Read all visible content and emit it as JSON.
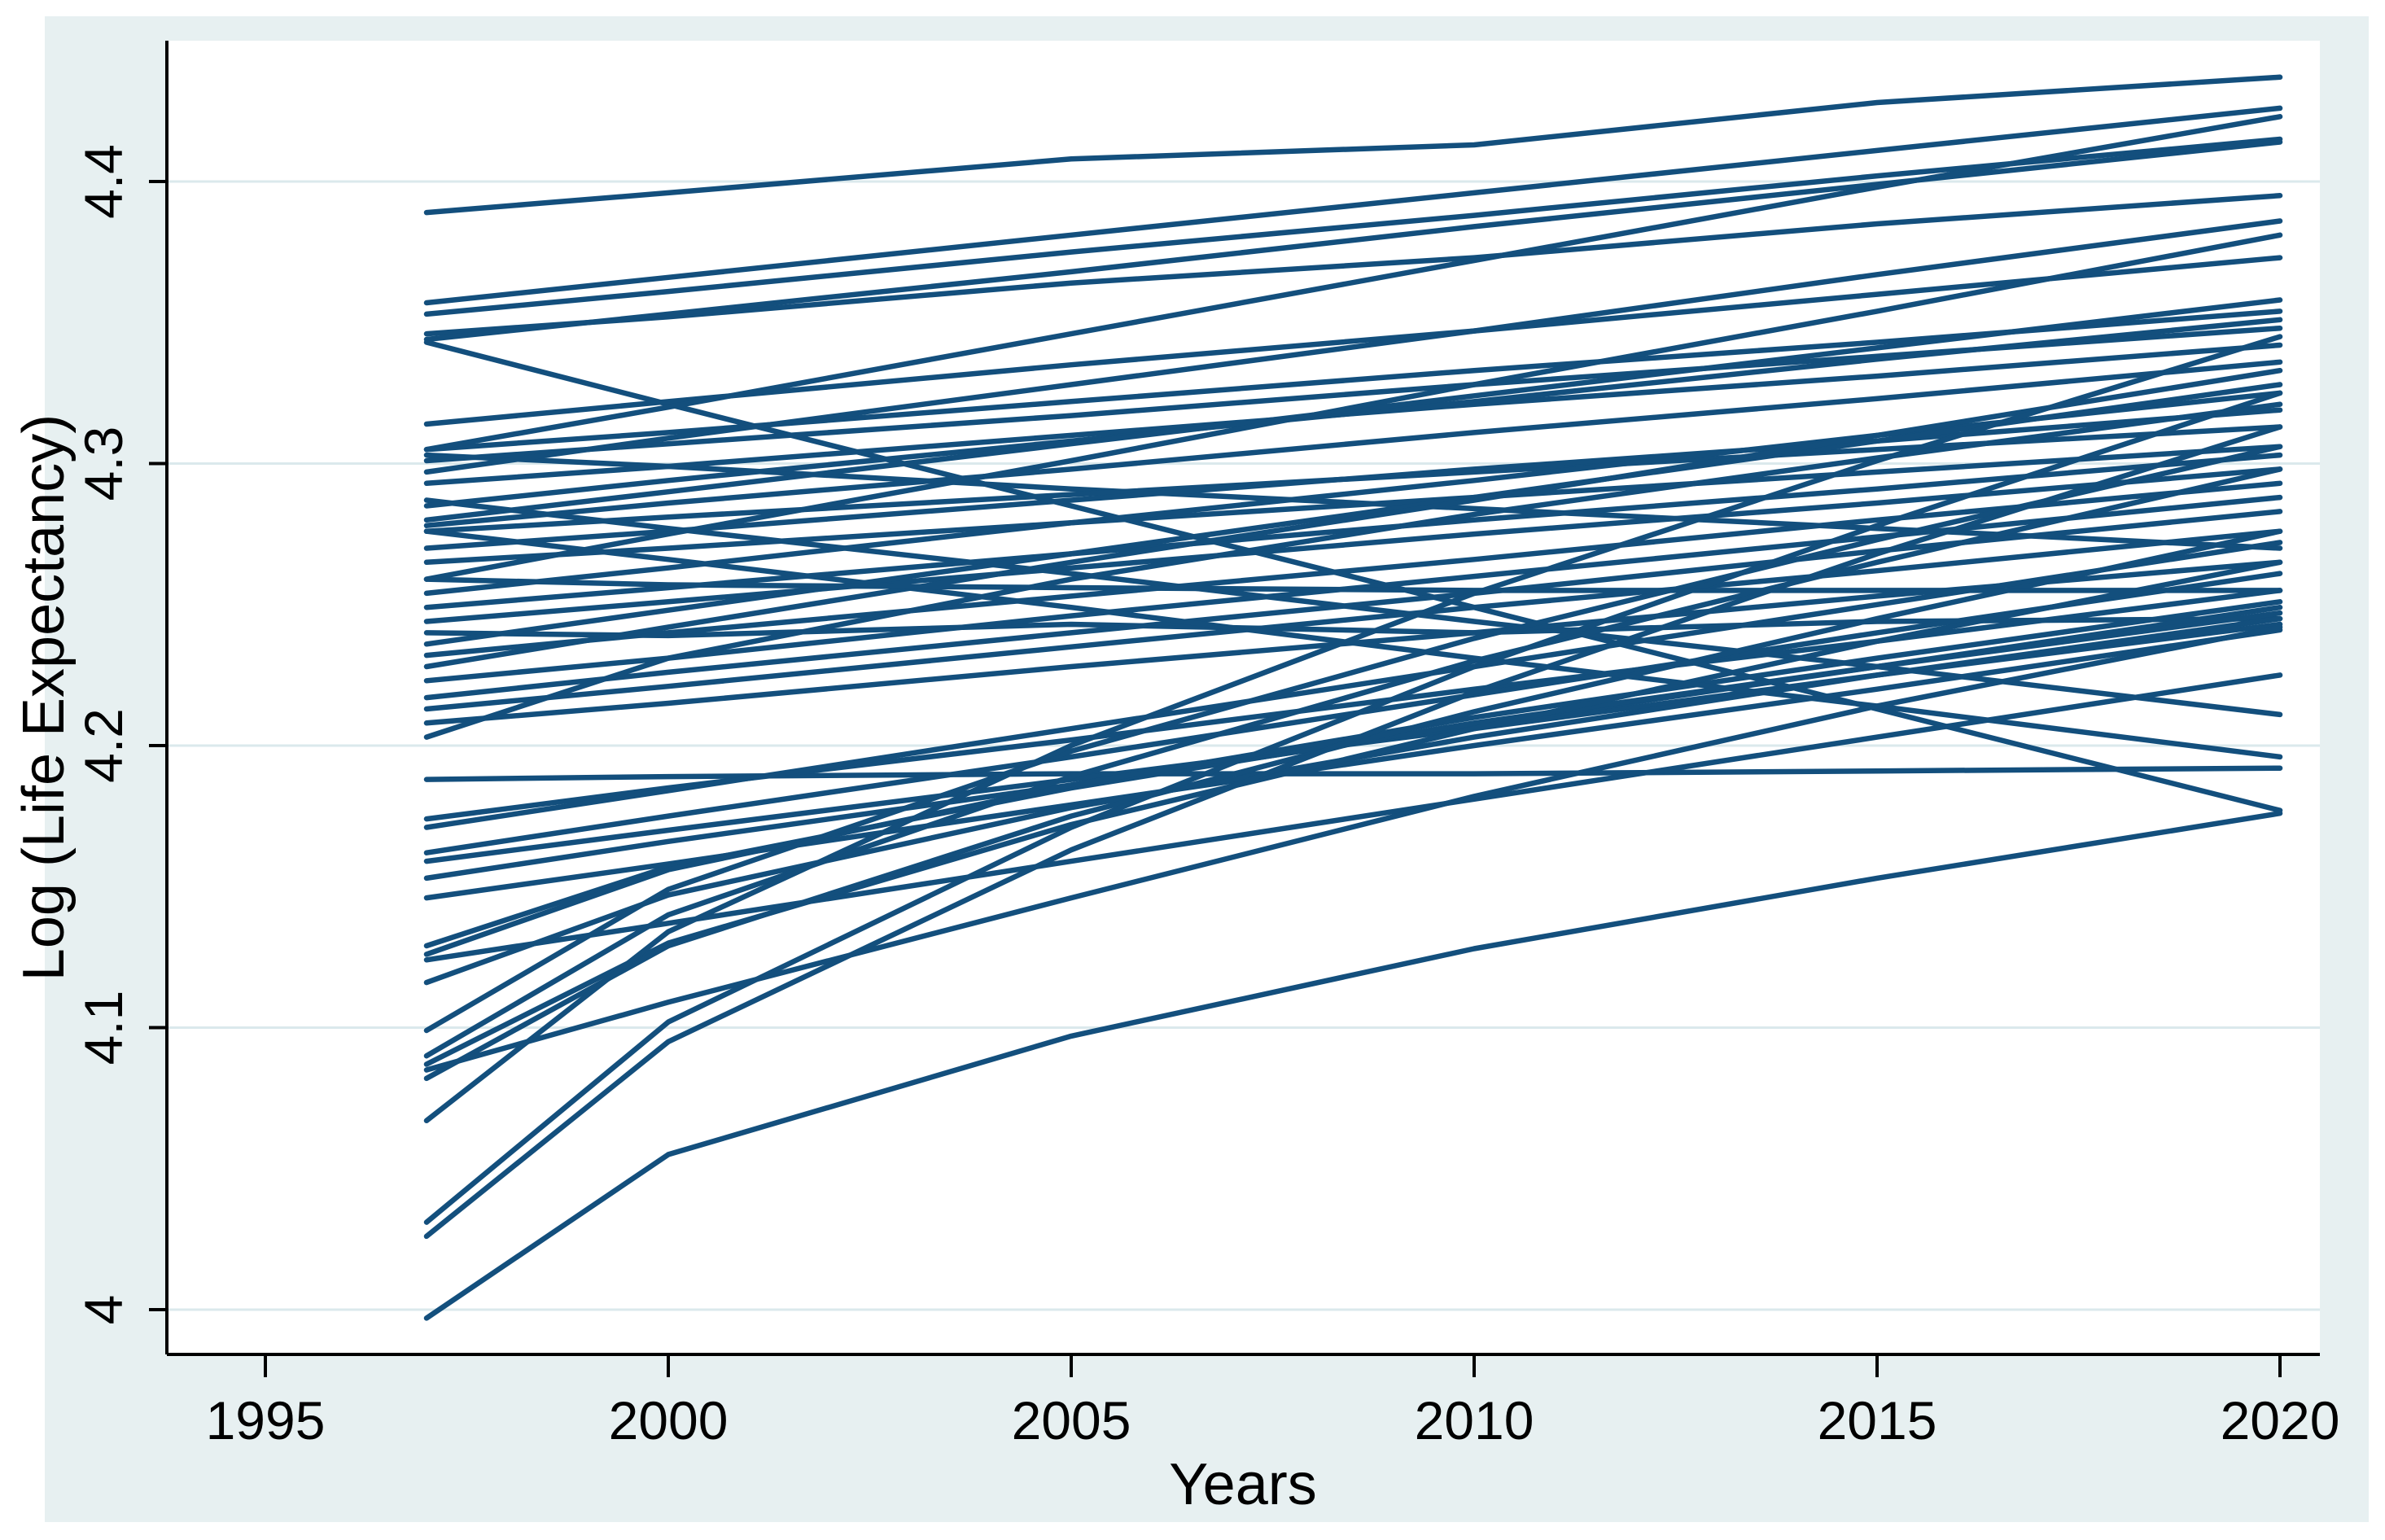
{
  "chart_data": {
    "type": "line",
    "title": "",
    "xlabel": "Years",
    "ylabel": "Log (Life Expectancy)",
    "legend_position": "none",
    "grid": "horizontal",
    "x_ticks": [
      1995,
      2000,
      2005,
      2010,
      2015,
      2020
    ],
    "x_tick_labels": [
      "1995",
      "2000",
      "2005",
      "2010",
      "2015",
      "2020"
    ],
    "y_ticks": [
      4.0,
      4.1,
      4.2,
      4.3,
      4.4
    ],
    "y_tick_labels": [
      "4",
      "4.1",
      "4.2",
      "4.3",
      "4.4"
    ],
    "xlim": [
      1993.8,
      2020.5
    ],
    "ylim": [
      3.984,
      4.45
    ],
    "x": [
      1997,
      2000,
      2005,
      2010,
      2015,
      2020
    ],
    "series": [
      {
        "values": [
          4.389,
          4.396,
          4.408,
          4.413,
          4.428,
          4.437
        ]
      },
      {
        "values": [
          4.357,
          4.366,
          4.381,
          4.396,
          4.411,
          4.426
        ]
      },
      {
        "values": [
          4.353,
          4.361,
          4.375,
          4.388,
          4.402,
          4.415
        ]
      },
      {
        "values": [
          4.346,
          4.352,
          4.364,
          4.373,
          4.385,
          4.395
        ]
      },
      {
        "values": [
          4.344,
          4.353,
          4.368,
          4.384,
          4.399,
          4.414
        ]
      },
      {
        "values": [
          4.343,
          4.321,
          4.285,
          4.249,
          4.213,
          4.177
        ]
      },
      {
        "values": [
          4.314,
          4.322,
          4.335,
          4.347,
          4.36,
          4.373
        ]
      },
      {
        "values": [
          4.305,
          4.311,
          4.322,
          4.333,
          4.343,
          4.354
        ]
      },
      {
        "values": [
          4.303,
          4.299,
          4.291,
          4.284,
          4.277,
          4.27
        ]
      },
      {
        "values": [
          4.301,
          4.307,
          4.317,
          4.328,
          4.338,
          4.348
        ]
      },
      {
        "values": [
          4.297,
          4.309,
          4.328,
          4.347,
          4.367,
          4.386
        ]
      },
      {
        "values": [
          4.293,
          4.299,
          4.31,
          4.321,
          4.331,
          4.342
        ]
      },
      {
        "values": [
          4.287,
          4.277,
          4.261,
          4.244,
          4.228,
          4.211
        ]
      },
      {
        "values": [
          4.285,
          4.294,
          4.308,
          4.322,
          4.337,
          4.351
        ]
      },
      {
        "values": [
          4.28,
          4.29,
          4.307,
          4.324,
          4.341,
          4.358
        ]
      },
      {
        "values": [
          4.278,
          4.286,
          4.298,
          4.311,
          4.323,
          4.336
        ]
      },
      {
        "values": [
          4.276,
          4.281,
          4.289,
          4.297,
          4.305,
          4.313
        ]
      },
      {
        "values": [
          4.27,
          4.276,
          4.287,
          4.298,
          4.308,
          4.319
        ]
      },
      {
        "values": [
          4.265,
          4.27,
          4.279,
          4.288,
          4.297,
          4.306
        ]
      },
      {
        "values": [
          4.259,
          4.275,
          4.301,
          4.328,
          4.354,
          4.381
        ]
      },
      {
        "values": [
          4.254,
          4.263,
          4.279,
          4.294,
          4.31,
          4.325
        ]
      },
      {
        "values": [
          4.249,
          4.256,
          4.268,
          4.28,
          4.291,
          4.303
        ]
      },
      {
        "values": [
          4.244,
          4.251,
          4.263,
          4.275,
          4.286,
          4.298
        ]
      },
      {
        "values": [
          4.24,
          4.239,
          4.243,
          4.24,
          4.244,
          4.245
        ]
      },
      {
        "values": [
          4.236,
          4.248,
          4.268,
          4.288,
          4.308,
          4.328
        ]
      },
      {
        "values": [
          4.232,
          4.24,
          4.253,
          4.266,
          4.28,
          4.293
        ]
      },
      {
        "values": [
          4.228,
          4.242,
          4.265,
          4.287,
          4.31,
          4.333
        ]
      },
      {
        "values": [
          4.223,
          4.231,
          4.246,
          4.26,
          4.274,
          4.288
        ]
      },
      {
        "values": [
          4.217,
          4.226,
          4.24,
          4.254,
          4.269,
          4.283
        ]
      },
      {
        "values": [
          4.213,
          4.221,
          4.235,
          4.249,
          4.262,
          4.276
        ]
      },
      {
        "values": [
          4.208,
          4.215,
          4.228,
          4.24,
          4.253,
          4.265
        ]
      },
      {
        "values": [
          4.203,
          4.231,
          4.259,
          4.282,
          4.302,
          4.321
        ]
      },
      {
        "values": [
          4.188,
          4.189,
          4.19,
          4.19,
          4.191,
          4.192
        ]
      },
      {
        "values": [
          4.174,
          4.185,
          4.202,
          4.22,
          4.237,
          4.255
        ]
      },
      {
        "values": [
          4.171,
          4.184,
          4.206,
          4.228,
          4.25,
          4.272
        ]
      },
      {
        "values": [
          4.162,
          4.175,
          4.196,
          4.218,
          4.24,
          4.261
        ]
      },
      {
        "values": [
          4.159,
          4.17,
          4.188,
          4.206,
          4.225,
          4.243
        ]
      },
      {
        "values": [
          4.153,
          4.166,
          4.186,
          4.207,
          4.228,
          4.249
        ]
      },
      {
        "values": [
          4.146,
          4.158,
          4.179,
          4.2,
          4.22,
          4.241
        ]
      },
      {
        "values": [
          4.129,
          4.157,
          4.185,
          4.208,
          4.228,
          4.247
        ]
      },
      {
        "values": [
          4.126,
          4.156,
          4.186,
          4.21,
          4.231,
          4.251
        ]
      },
      {
        "values": [
          4.124,
          4.137,
          4.159,
          4.181,
          4.203,
          4.225
        ]
      },
      {
        "values": [
          4.116,
          4.147,
          4.178,
          4.203,
          4.225,
          4.245
        ]
      },
      {
        "values": [
          4.099,
          4.149,
          4.198,
          4.238,
          4.273,
          4.306
        ]
      },
      {
        "values": [
          4.09,
          4.14,
          4.189,
          4.23,
          4.265,
          4.298
        ]
      },
      {
        "values": [
          4.087,
          4.13,
          4.172,
          4.206,
          4.237,
          4.265
        ]
      },
      {
        "values": [
          4.082,
          4.129,
          4.175,
          4.212,
          4.245,
          4.276
        ]
      },
      {
        "values": [
          4.067,
          4.134,
          4.2,
          4.254,
          4.301,
          4.345
        ]
      },
      {
        "values": [
          4.031,
          4.102,
          4.171,
          4.228,
          4.278,
          4.325
        ]
      },
      {
        "values": [
          4.026,
          4.095,
          4.163,
          4.219,
          4.268,
          4.313
        ]
      },
      {
        "values": [
          3.997,
          4.055,
          4.097,
          4.128,
          4.153,
          4.176
        ]
      },
      {
        "values": [
          4.305,
          4.32,
          4.346,
          4.372,
          4.398,
          4.423
        ]
      },
      {
        "values": [
          4.276,
          4.266,
          4.249,
          4.231,
          4.214,
          4.196
        ]
      },
      {
        "values": [
          4.259,
          4.257,
          4.256,
          4.255,
          4.255,
          4.255
        ]
      },
      {
        "values": [
          4.085,
          4.109,
          4.146,
          4.182,
          4.214,
          4.242
        ]
      }
    ]
  },
  "style": {
    "page_background": "#ffffff",
    "panel_background": "#e7f0f1",
    "plot_background": "#ffffff",
    "grid_color": "#dbe9ec",
    "axis_color": "#000000",
    "line_color": "#134f7d",
    "line_width": 6.5,
    "tick_label_color": "#000000"
  }
}
